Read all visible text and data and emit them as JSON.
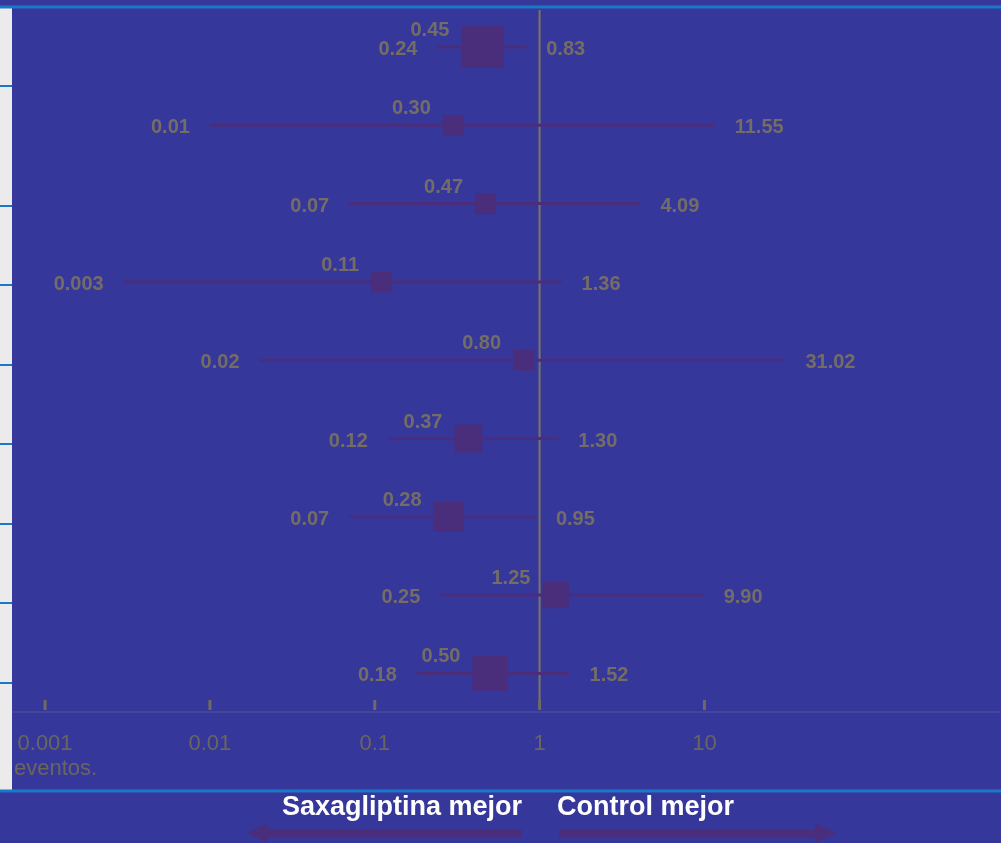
{
  "chart_data": {
    "type": "bubble",
    "orientation": "horizontal",
    "marker": "square",
    "categories": [
      null,
      null,
      null,
      null,
      null,
      null,
      null,
      null,
      null
    ],
    "series": [
      {
        "color": "#4a2e7c",
        "values": [
          0.45,
          0.3,
          0.47,
          0.11,
          0.8,
          0.37,
          0.28,
          1.25,
          0.5
        ],
        "value_labels": [
          "0.45",
          "0.30",
          "0.47",
          "0.11",
          "0.80",
          "0.37",
          "0.28",
          "1.25",
          "0.50"
        ],
        "sizes": [
          1,
          0.25,
          0.25,
          0.25,
          0.25,
          0.44,
          0.5,
          0.39,
          0.69
        ],
        "errors": [
          [
            0.24,
            0.83
          ],
          [
            0.01,
            11.55
          ],
          [
            0.07,
            4.09
          ],
          [
            0.003,
            1.36
          ],
          [
            0.02,
            31.02
          ],
          [
            0.12,
            1.3
          ],
          [
            0.07,
            0.95
          ],
          [
            0.25,
            9.9
          ],
          [
            0.18,
            1.52
          ]
        ]
      }
    ],
    "log": "x",
    "xlim": [
      0.00063,
      630
    ],
    "xticks": [
      0.001,
      0.01,
      0.1,
      1,
      10
    ],
    "ref_lines": [
      {
        "axis": "x",
        "value": 1,
        "color": "#7d7563"
      }
    ],
    "annotations": [
      "eventos.",
      "Saxagliptina mejor",
      "Control mejor",
      {
        "text": "0.24",
        "x": 0.24
      },
      {
        "text": "0.83",
        "x": 0.83
      },
      {
        "text": "0.01",
        "x": 0.01
      },
      {
        "text": "11.55",
        "x": 11.55
      },
      {
        "text": "0.07",
        "x": 0.07
      },
      {
        "text": "4.09",
        "x": 4.09
      },
      {
        "text": "0.003",
        "x": 0.003
      },
      {
        "text": "1.36",
        "x": 1.36
      },
      {
        "text": "0.02",
        "x": 0.02
      },
      {
        "text": "31.02",
        "x": 31.02
      },
      {
        "text": "0.12",
        "x": 0.12
      },
      {
        "text": "1.30",
        "x": 1.3
      },
      {
        "text": "0.07",
        "x": 0.07
      },
      {
        "text": "0.95",
        "x": 0.95
      },
      {
        "text": "0.25",
        "x": 0.25
      },
      {
        "text": "9.90",
        "x": 9.9
      },
      {
        "text": "0.18",
        "x": 0.18
      },
      {
        "text": "1.52",
        "x": 1.52
      }
    ]
  }
}
